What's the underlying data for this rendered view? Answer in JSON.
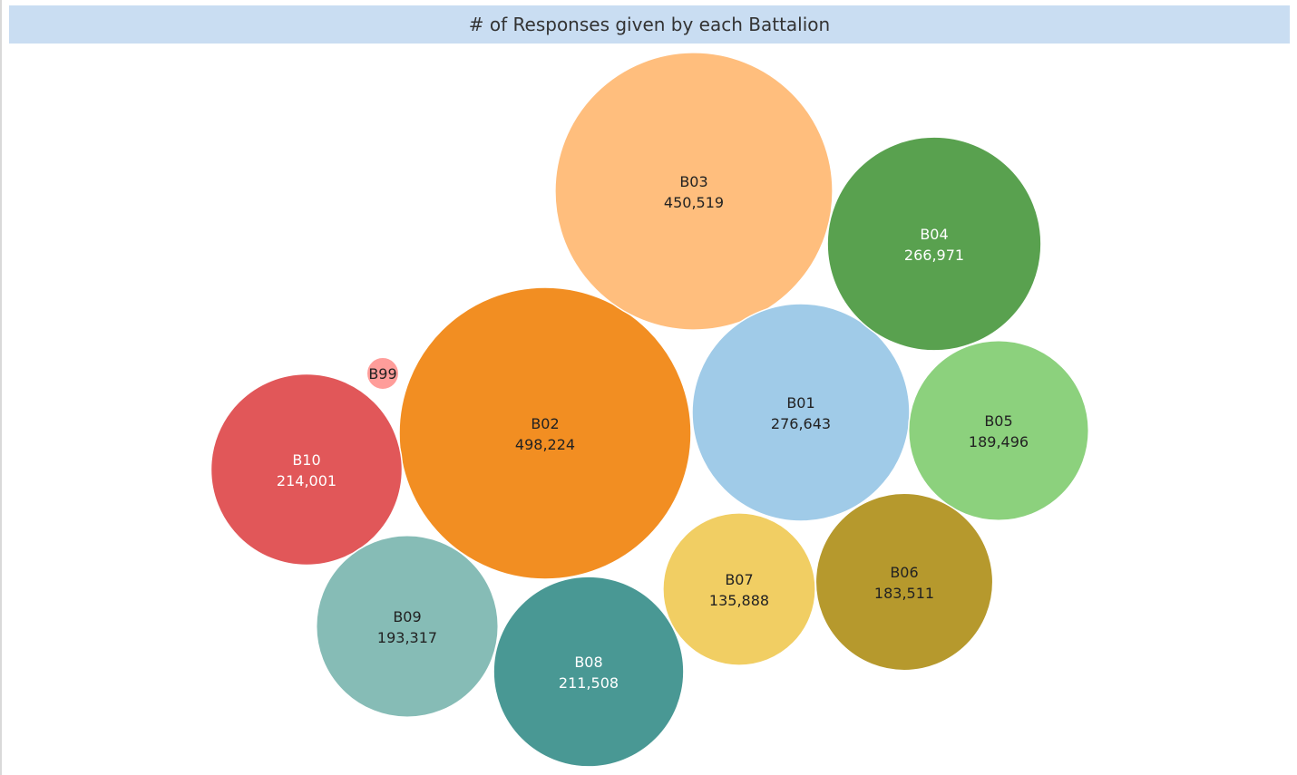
{
  "title": "# of Responses given by each Battalion",
  "chart_data": {
    "type": "bubble",
    "size_encoding": "area",
    "bubbles": [
      {
        "label": "B02",
        "value": 498224,
        "value_text": "498,224",
        "color": "#f28e22",
        "text_color": "#222222"
      },
      {
        "label": "B03",
        "value": 450519,
        "value_text": "450,519",
        "color": "#ffbe7d",
        "text_color": "#222222"
      },
      {
        "label": "B01",
        "value": 276643,
        "value_text": "276,643",
        "color": "#a0cbe8",
        "text_color": "#222222"
      },
      {
        "label": "B04",
        "value": 266971,
        "value_text": "266,971",
        "color": "#59a14f",
        "text_color": "#ffffff"
      },
      {
        "label": "B10",
        "value": 214001,
        "value_text": "214,001",
        "color": "#e15759",
        "text_color": "#ffffff"
      },
      {
        "label": "B08",
        "value": 211508,
        "value_text": "211,508",
        "color": "#499894",
        "text_color": "#ffffff"
      },
      {
        "label": "B09",
        "value": 193317,
        "value_text": "193,317",
        "color": "#86bcb6",
        "text_color": "#222222"
      },
      {
        "label": "B05",
        "value": 189496,
        "value_text": "189,496",
        "color": "#8cd17d",
        "text_color": "#222222"
      },
      {
        "label": "B06",
        "value": 183511,
        "value_text": "183,511",
        "color": "#b6992d",
        "text_color": "#222222"
      },
      {
        "label": "B07",
        "value": 135888,
        "value_text": "135,888",
        "color": "#f1ce63",
        "text_color": "#222222"
      },
      {
        "label": "B99",
        "value": 6000,
        "value_text": "",
        "color": "#ff9d9a",
        "text_color": "#222222"
      }
    ]
  }
}
